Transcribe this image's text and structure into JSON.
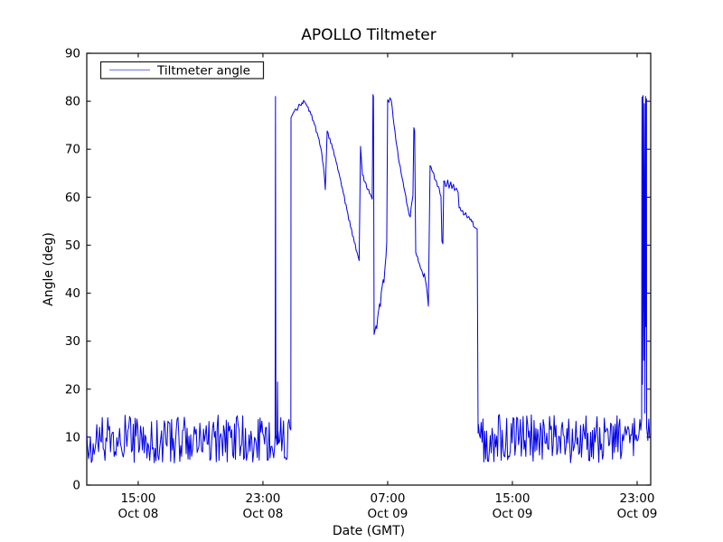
{
  "chart_data": {
    "type": "line",
    "title": "APOLLO Tiltmeter",
    "xlabel": "Date (GMT)",
    "ylabel": "Angle (deg)",
    "legend_label": "Tiltmeter angle",
    "legend_position": "upper left",
    "grid": false,
    "colors": {
      "line": "#0000e8",
      "legend_sample": "#9191e8",
      "frame": "#1a1a1a",
      "text": "#000000",
      "background": "#ffffff"
    },
    "x_unit": "hours since Oct 08 00:00 GMT",
    "xlim": [
      11.7,
      47.87
    ],
    "ylim": [
      0,
      90
    ],
    "yticks": [
      0,
      10,
      20,
      30,
      40,
      50,
      60,
      70,
      80,
      90
    ],
    "xticks": [
      {
        "t": 15,
        "time": "15:00",
        "date": "Oct 08"
      },
      {
        "t": 23,
        "time": "23:00",
        "date": "Oct 08"
      },
      {
        "t": 31,
        "time": "07:00",
        "date": "Oct 09"
      },
      {
        "t": 39,
        "time": "15:00",
        "date": "Oct 09"
      },
      {
        "t": 47,
        "time": "23:00",
        "date": "Oct 09"
      }
    ],
    "segments": [
      {
        "type": "noise",
        "t0": 11.7,
        "t1": 23.77,
        "min": 4.6,
        "max": 14.6,
        "seed": 7
      },
      {
        "type": "points",
        "pts": [
          [
            23.78,
            10.5
          ],
          [
            23.805,
            81.0
          ],
          [
            23.83,
            9.8
          ]
        ]
      },
      {
        "type": "noise",
        "t0": 23.84,
        "t1": 23.9,
        "min": 5.5,
        "max": 13.0,
        "seed": 11
      },
      {
        "type": "points",
        "pts": [
          [
            23.91,
            9.5
          ],
          [
            23.935,
            21.5
          ],
          [
            23.96,
            8.6
          ]
        ]
      },
      {
        "type": "noise",
        "t0": 23.97,
        "t1": 24.78,
        "min": 4.8,
        "max": 14.2,
        "seed": 13
      },
      {
        "type": "points",
        "jitter": 0.3,
        "pts": [
          [
            24.79,
            11.5
          ],
          [
            24.8,
            76.6
          ],
          [
            24.95,
            77.6
          ],
          [
            25.09,
            78.4
          ],
          [
            25.2,
            78.1
          ],
          [
            25.32,
            79.4
          ],
          [
            25.45,
            79.1
          ],
          [
            25.61,
            80.2
          ],
          [
            25.75,
            79.5
          ],
          [
            25.84,
            78.9
          ],
          [
            26.07,
            77.3
          ],
          [
            26.3,
            75.2
          ],
          [
            26.54,
            72.6
          ],
          [
            26.71,
            70.3
          ],
          [
            26.88,
            66.5
          ],
          [
            26.95,
            64.0
          ],
          [
            27.0,
            61.6
          ],
          [
            27.12,
            73.8
          ],
          [
            27.46,
            70.2
          ],
          [
            27.7,
            67.3
          ],
          [
            27.93,
            64.2
          ],
          [
            28.16,
            60.8
          ],
          [
            28.39,
            57.3
          ],
          [
            28.62,
            53.8
          ],
          [
            28.86,
            50.6
          ],
          [
            29.03,
            48.6
          ],
          [
            29.17,
            46.8
          ],
          [
            29.26,
            70.6
          ],
          [
            29.38,
            64.6
          ],
          [
            29.55,
            63.2
          ],
          [
            29.72,
            61.6
          ],
          [
            29.9,
            60.6
          ],
          [
            30.01,
            59.6
          ],
          [
            30.06,
            81.4
          ],
          [
            30.09,
            80.9
          ],
          [
            30.13,
            31.4
          ],
          [
            30.25,
            33.2
          ],
          [
            30.3,
            32.6
          ],
          [
            30.36,
            35.0
          ],
          [
            30.48,
            37.8
          ],
          [
            30.53,
            37.2
          ],
          [
            30.59,
            40.2
          ],
          [
            30.71,
            42.8
          ],
          [
            30.76,
            42.2
          ],
          [
            30.83,
            45.4
          ],
          [
            30.89,
            47.6
          ],
          [
            30.94,
            50.6
          ],
          [
            31.0,
            80.3
          ],
          [
            31.08,
            79.8
          ],
          [
            31.15,
            80.7
          ],
          [
            31.23,
            80.2
          ],
          [
            31.41,
            75.0
          ],
          [
            31.58,
            70.8
          ],
          [
            31.75,
            67.0
          ],
          [
            31.93,
            64.0
          ],
          [
            32.1,
            61.2
          ],
          [
            32.28,
            58.0
          ],
          [
            32.39,
            56.2
          ],
          [
            32.45,
            55.9
          ],
          [
            32.51,
            58.0
          ],
          [
            32.62,
            60.3
          ],
          [
            32.68,
            74.5
          ],
          [
            32.73,
            73.8
          ],
          [
            32.8,
            48.5
          ],
          [
            32.86,
            47.8
          ],
          [
            33.03,
            46.2
          ],
          [
            33.1,
            45.3
          ],
          [
            33.2,
            44.6
          ],
          [
            33.3,
            43.4
          ],
          [
            33.35,
            44.1
          ],
          [
            33.49,
            41.4
          ],
          [
            33.55,
            39.6
          ],
          [
            33.61,
            37.3
          ],
          [
            33.72,
            66.6
          ],
          [
            33.9,
            65.2
          ],
          [
            34.07,
            63.6
          ],
          [
            34.25,
            62.2
          ],
          [
            34.42,
            60.2
          ],
          [
            34.48,
            50.8
          ],
          [
            34.54,
            50.3
          ],
          [
            34.6,
            63.4
          ],
          [
            34.77,
            62.3
          ],
          [
            34.85,
            63.6
          ],
          [
            34.94,
            61.9
          ],
          [
            35.05,
            63.2
          ],
          [
            35.12,
            61.8
          ],
          [
            35.22,
            62.7
          ],
          [
            35.29,
            61.4
          ],
          [
            35.4,
            61.9
          ],
          [
            35.52,
            61.0
          ],
          [
            35.58,
            57.8
          ],
          [
            35.75,
            57.1
          ],
          [
            35.93,
            56.4
          ],
          [
            36.0,
            56.8
          ],
          [
            36.1,
            55.7
          ],
          [
            36.2,
            56.0
          ],
          [
            36.28,
            55.3
          ],
          [
            36.45,
            55.0
          ],
          [
            36.51,
            53.9
          ],
          [
            36.62,
            53.6
          ],
          [
            36.74,
            53.4
          ],
          [
            36.8,
            10.8
          ]
        ]
      },
      {
        "type": "noise",
        "t0": 36.82,
        "t1": 47.28,
        "min": 4.6,
        "max": 14.8,
        "seed": 21
      },
      {
        "type": "points",
        "pts": [
          [
            47.29,
            13.8
          ],
          [
            47.31,
            80.9
          ],
          [
            47.34,
            21.0
          ],
          [
            47.38,
            81.2
          ],
          [
            47.42,
            26.0
          ],
          [
            47.46,
            79.5
          ],
          [
            47.5,
            15.0
          ],
          [
            47.54,
            81.0
          ],
          [
            47.57,
            33.0
          ],
          [
            47.6,
            80.5
          ],
          [
            47.61,
            12.0
          ]
        ]
      },
      {
        "type": "noise",
        "t0": 47.63,
        "t1": 47.82,
        "min": 7.5,
        "max": 14.5,
        "seed": 5
      }
    ]
  }
}
